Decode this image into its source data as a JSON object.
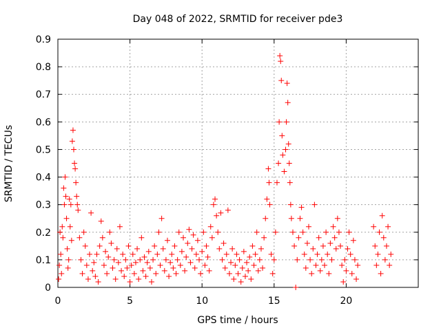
{
  "chart_data": {
    "type": "scatter",
    "title": "Day 048 of 2022, SRMTID for receiver pde3",
    "xlabel": "GPS time / hours",
    "ylabel": "SRMTID / TECUs",
    "xlim": [
      0,
      25
    ],
    "ylim": [
      0,
      0.9
    ],
    "xticks": [
      0,
      5,
      10,
      15,
      20
    ],
    "yticks": [
      0,
      0.1,
      0.2,
      0.3,
      0.4,
      0.5,
      0.6,
      0.7,
      0.8,
      0.9
    ],
    "grid": true,
    "marker": "+",
    "color": "#ff0000",
    "series": [
      {
        "name": "SRMTID",
        "points": [
          [
            0.05,
            0.03
          ],
          [
            0.1,
            0.08
          ],
          [
            0.15,
            0.2
          ],
          [
            0.2,
            0.12
          ],
          [
            0.25,
            0.05
          ],
          [
            0.3,
            0.22
          ],
          [
            0.35,
            0.18
          ],
          [
            0.4,
            0.36
          ],
          [
            0.45,
            0.3
          ],
          [
            0.5,
            0.4
          ],
          [
            0.55,
            0.33
          ],
          [
            0.6,
            0.25
          ],
          [
            0.65,
            0.14
          ],
          [
            0.7,
            0.07
          ],
          [
            0.75,
            0.1
          ],
          [
            0.8,
            0.32
          ],
          [
            0.85,
            0.22
          ],
          [
            0.9,
            0.3
          ],
          [
            0.95,
            0.17
          ],
          [
            1.0,
            0.53
          ],
          [
            1.05,
            0.57
          ],
          [
            1.1,
            0.5
          ],
          [
            1.15,
            0.45
          ],
          [
            1.2,
            0.43
          ],
          [
            1.25,
            0.38
          ],
          [
            1.3,
            0.33
          ],
          [
            1.35,
            0.3
          ],
          [
            1.4,
            0.28
          ],
          [
            1.5,
            0.18
          ],
          [
            1.6,
            0.1
          ],
          [
            1.7,
            0.05
          ],
          [
            1.8,
            0.2
          ],
          [
            1.9,
            0.15
          ],
          [
            2.0,
            0.08
          ],
          [
            2.1,
            0.03
          ],
          [
            2.2,
            0.12
          ],
          [
            2.3,
            0.27
          ],
          [
            2.4,
            0.06
          ],
          [
            2.5,
            0.09
          ],
          [
            2.6,
            0.04
          ],
          [
            2.7,
            0.12
          ],
          [
            2.8,
            0.02
          ],
          [
            2.9,
            0.15
          ],
          [
            3.0,
            0.24
          ],
          [
            3.1,
            0.18
          ],
          [
            3.2,
            0.08
          ],
          [
            3.3,
            0.13
          ],
          [
            3.4,
            0.05
          ],
          [
            3.5,
            0.11
          ],
          [
            3.6,
            0.2
          ],
          [
            3.7,
            0.16
          ],
          [
            3.8,
            0.07
          ],
          [
            3.9,
            0.1
          ],
          [
            4.0,
            0.03
          ],
          [
            4.1,
            0.14
          ],
          [
            4.2,
            0.09
          ],
          [
            4.3,
            0.22
          ],
          [
            4.4,
            0.06
          ],
          [
            4.5,
            0.12
          ],
          [
            4.6,
            0.04
          ],
          [
            4.7,
            0.1
          ],
          [
            4.8,
            0.07
          ],
          [
            4.9,
            0.15
          ],
          [
            5.0,
            0.02
          ],
          [
            5.1,
            0.08
          ],
          [
            5.2,
            0.12
          ],
          [
            5.3,
            0.05
          ],
          [
            5.4,
            0.09
          ],
          [
            5.5,
            0.14
          ],
          [
            5.6,
            0.03
          ],
          [
            5.7,
            0.1
          ],
          [
            5.8,
            0.18
          ],
          [
            5.9,
            0.06
          ],
          [
            6.0,
            0.11
          ],
          [
            6.1,
            0.04
          ],
          [
            6.2,
            0.09
          ],
          [
            6.3,
            0.13
          ],
          [
            6.4,
            0.07
          ],
          [
            6.5,
            0.02
          ],
          [
            6.6,
            0.1
          ],
          [
            6.7,
            0.15
          ],
          [
            6.8,
            0.05
          ],
          [
            6.9,
            0.12
          ],
          [
            7.0,
            0.2
          ],
          [
            7.1,
            0.08
          ],
          [
            7.2,
            0.25
          ],
          [
            7.3,
            0.14
          ],
          [
            7.4,
            0.06
          ],
          [
            7.5,
            0.1
          ],
          [
            7.6,
            0.17
          ],
          [
            7.7,
            0.04
          ],
          [
            7.8,
            0.09
          ],
          [
            7.9,
            0.12
          ],
          [
            8.0,
            0.07
          ],
          [
            8.1,
            0.15
          ],
          [
            8.2,
            0.05
          ],
          [
            8.3,
            0.1
          ],
          [
            8.4,
            0.2
          ],
          [
            8.5,
            0.08
          ],
          [
            8.6,
            0.13
          ],
          [
            8.7,
            0.18
          ],
          [
            8.8,
            0.06
          ],
          [
            8.9,
            0.11
          ],
          [
            9.0,
            0.16
          ],
          [
            9.1,
            0.21
          ],
          [
            9.2,
            0.09
          ],
          [
            9.3,
            0.14
          ],
          [
            9.4,
            0.19
          ],
          [
            9.5,
            0.07
          ],
          [
            9.6,
            0.12
          ],
          [
            9.7,
            0.17
          ],
          [
            9.8,
            0.1
          ],
          [
            9.9,
            0.05
          ],
          [
            10.0,
            0.13
          ],
          [
            10.1,
            0.2
          ],
          [
            10.2,
            0.08
          ],
          [
            10.3,
            0.15
          ],
          [
            10.4,
            0.11
          ],
          [
            10.5,
            0.06
          ],
          [
            10.6,
            0.22
          ],
          [
            10.7,
            0.18
          ],
          [
            10.8,
            0.3
          ],
          [
            10.9,
            0.32
          ],
          [
            11.0,
            0.26
          ],
          [
            11.1,
            0.2
          ],
          [
            11.2,
            0.14
          ],
          [
            11.3,
            0.27
          ],
          [
            11.4,
            0.1
          ],
          [
            11.5,
            0.16
          ],
          [
            11.6,
            0.07
          ],
          [
            11.7,
            0.12
          ],
          [
            11.8,
            0.28
          ],
          [
            11.9,
            0.05
          ],
          [
            12.0,
            0.09
          ],
          [
            12.1,
            0.14
          ],
          [
            12.2,
            0.03
          ],
          [
            12.3,
            0.08
          ],
          [
            12.4,
            0.12
          ],
          [
            12.5,
            0.05
          ],
          [
            12.6,
            0.1
          ],
          [
            12.7,
            0.02
          ],
          [
            12.8,
            0.07
          ],
          [
            12.9,
            0.13
          ],
          [
            13.0,
            0.04
          ],
          [
            13.1,
            0.09
          ],
          [
            13.2,
            0.06
          ],
          [
            13.3,
            0.11
          ],
          [
            13.4,
            0.03
          ],
          [
            13.5,
            0.15
          ],
          [
            13.6,
            0.08
          ],
          [
            13.7,
            0.12
          ],
          [
            13.8,
            0.2
          ],
          [
            13.9,
            0.06
          ],
          [
            14.0,
            0.1
          ],
          [
            14.1,
            0.14
          ],
          [
            14.2,
            0.07
          ],
          [
            14.3,
            0.18
          ],
          [
            14.4,
            0.25
          ],
          [
            14.5,
            0.32
          ],
          [
            14.6,
            0.43
          ],
          [
            14.65,
            0.38
          ],
          [
            14.7,
            0.3
          ],
          [
            14.8,
            0.12
          ],
          [
            14.9,
            0.05
          ],
          [
            15.0,
            0.1
          ],
          [
            15.1,
            0.2
          ],
          [
            15.2,
            0.38
          ],
          [
            15.3,
            0.45
          ],
          [
            15.35,
            0.6
          ],
          [
            15.4,
            0.84
          ],
          [
            15.45,
            0.82
          ],
          [
            15.5,
            0.75
          ],
          [
            15.55,
            0.55
          ],
          [
            15.6,
            0.48
          ],
          [
            15.7,
            0.42
          ],
          [
            15.8,
            0.5
          ],
          [
            15.85,
            0.6
          ],
          [
            15.9,
            0.74
          ],
          [
            15.95,
            0.67
          ],
          [
            16.0,
            0.52
          ],
          [
            16.05,
            0.45
          ],
          [
            16.1,
            0.38
          ],
          [
            16.15,
            0.3
          ],
          [
            16.2,
            0.25
          ],
          [
            16.3,
            0.2
          ],
          [
            16.4,
            0.15
          ],
          [
            16.5,
            0.0
          ],
          [
            16.6,
            0.1
          ],
          [
            16.7,
            0.18
          ],
          [
            16.8,
            0.25
          ],
          [
            16.9,
            0.29
          ],
          [
            17.0,
            0.2
          ],
          [
            17.1,
            0.12
          ],
          [
            17.2,
            0.07
          ],
          [
            17.3,
            0.16
          ],
          [
            17.4,
            0.22
          ],
          [
            17.5,
            0.1
          ],
          [
            17.6,
            0.05
          ],
          [
            17.7,
            0.14
          ],
          [
            17.8,
            0.3
          ],
          [
            17.9,
            0.08
          ],
          [
            18.0,
            0.12
          ],
          [
            18.1,
            0.18
          ],
          [
            18.2,
            0.06
          ],
          [
            18.3,
            0.1
          ],
          [
            18.4,
            0.15
          ],
          [
            18.5,
            0.08
          ],
          [
            18.6,
            0.2
          ],
          [
            18.7,
            0.12
          ],
          [
            18.8,
            0.05
          ],
          [
            18.9,
            0.16
          ],
          [
            19.0,
            0.1
          ],
          [
            19.1,
            0.22
          ],
          [
            19.2,
            0.18
          ],
          [
            19.3,
            0.14
          ],
          [
            19.4,
            0.25
          ],
          [
            19.5,
            0.2
          ],
          [
            19.6,
            0.15
          ],
          [
            19.7,
            0.08
          ],
          [
            19.8,
            0.02
          ],
          [
            19.9,
            0.1
          ],
          [
            20.0,
            0.06
          ],
          [
            20.1,
            0.14
          ],
          [
            20.2,
            0.2
          ],
          [
            20.3,
            0.12
          ],
          [
            20.4,
            0.05
          ],
          [
            20.5,
            0.17
          ],
          [
            20.6,
            0.1
          ],
          [
            20.7,
            0.03
          ],
          [
            20.8,
            0.08
          ],
          [
            21.9,
            0.22
          ],
          [
            22.0,
            0.15
          ],
          [
            22.1,
            0.08
          ],
          [
            22.2,
            0.12
          ],
          [
            22.3,
            0.2
          ],
          [
            22.4,
            0.05
          ],
          [
            22.5,
            0.26
          ],
          [
            22.6,
            0.18
          ],
          [
            22.7,
            0.1
          ],
          [
            22.8,
            0.15
          ],
          [
            22.9,
            0.22
          ],
          [
            23.0,
            0.08
          ],
          [
            23.1,
            0.12
          ]
        ]
      }
    ]
  }
}
